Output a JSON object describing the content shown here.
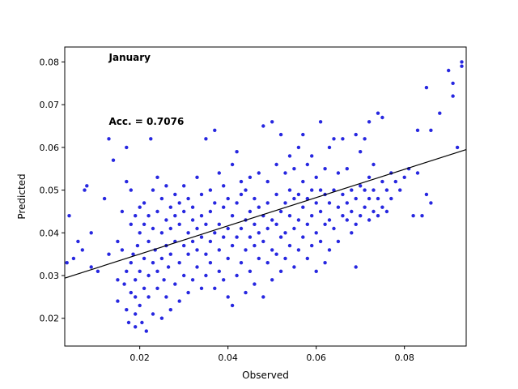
{
  "chart_data": {
    "type": "scatter",
    "title": "",
    "xlabel": "Observed",
    "ylabel": "Predicted",
    "xlim": [
      0.003,
      0.094
    ],
    "ylim": [
      0.0135,
      0.0835
    ],
    "xticks": [
      0.02,
      0.04,
      0.06,
      0.08
    ],
    "xtick_labels": [
      "0.02",
      "0.04",
      "0.06",
      "0.08"
    ],
    "yticks": [
      0.02,
      0.03,
      0.04,
      0.05,
      0.06,
      0.07,
      0.08
    ],
    "ytick_labels": [
      "0.02",
      "0.03",
      "0.04",
      "0.05",
      "0.06",
      "0.07",
      "0.08"
    ],
    "grid": false,
    "annotations": [
      {
        "text": "January",
        "x": 0.013,
        "y": 0.0803
      },
      {
        "text": "Acc. = 0.7076",
        "x": 0.013,
        "y": 0.0653
      }
    ],
    "regression_line": {
      "x": [
        0.003,
        0.094
      ],
      "y": [
        0.0294,
        0.0595
      ]
    },
    "colors": {
      "points": "#1010dd",
      "line": "#000000"
    },
    "series": [
      {
        "points": [
          [
            0.004,
            0.044
          ],
          [
            0.0035,
            0.033
          ],
          [
            0.005,
            0.034
          ],
          [
            0.006,
            0.038
          ],
          [
            0.007,
            0.036
          ],
          [
            0.0075,
            0.05
          ],
          [
            0.008,
            0.051
          ],
          [
            0.009,
            0.032
          ],
          [
            0.009,
            0.04
          ],
          [
            0.0105,
            0.031
          ],
          [
            0.012,
            0.048
          ],
          [
            0.013,
            0.035
          ],
          [
            0.013,
            0.062
          ],
          [
            0.014,
            0.057
          ],
          [
            0.015,
            0.024
          ],
          [
            0.015,
            0.029
          ],
          [
            0.015,
            0.038
          ],
          [
            0.016,
            0.045
          ],
          [
            0.016,
            0.036
          ],
          [
            0.0165,
            0.028
          ],
          [
            0.017,
            0.06
          ],
          [
            0.017,
            0.052
          ],
          [
            0.017,
            0.031
          ],
          [
            0.017,
            0.022
          ],
          [
            0.0175,
            0.019
          ],
          [
            0.018,
            0.042
          ],
          [
            0.018,
            0.033
          ],
          [
            0.018,
            0.026
          ],
          [
            0.018,
            0.05
          ],
          [
            0.0185,
            0.035
          ],
          [
            0.019,
            0.018
          ],
          [
            0.019,
            0.021
          ],
          [
            0.019,
            0.025
          ],
          [
            0.019,
            0.029
          ],
          [
            0.019,
            0.044
          ],
          [
            0.0195,
            0.037
          ],
          [
            0.02,
            0.023
          ],
          [
            0.02,
            0.031
          ],
          [
            0.02,
            0.04
          ],
          [
            0.02,
            0.046
          ],
          [
            0.0205,
            0.019
          ],
          [
            0.021,
            0.027
          ],
          [
            0.021,
            0.034
          ],
          [
            0.021,
            0.047
          ],
          [
            0.021,
            0.042
          ],
          [
            0.0215,
            0.017
          ],
          [
            0.022,
            0.025
          ],
          [
            0.022,
            0.03
          ],
          [
            0.022,
            0.038
          ],
          [
            0.022,
            0.044
          ],
          [
            0.0225,
            0.062
          ],
          [
            0.023,
            0.021
          ],
          [
            0.023,
            0.033
          ],
          [
            0.023,
            0.041
          ],
          [
            0.023,
            0.05
          ],
          [
            0.0235,
            0.036
          ],
          [
            0.024,
            0.027
          ],
          [
            0.024,
            0.045
          ],
          [
            0.024,
            0.053
          ],
          [
            0.024,
            0.031
          ],
          [
            0.025,
            0.02
          ],
          [
            0.025,
            0.034
          ],
          [
            0.025,
            0.04
          ],
          [
            0.025,
            0.048
          ],
          [
            0.0255,
            0.029
          ],
          [
            0.026,
            0.025
          ],
          [
            0.026,
            0.037
          ],
          [
            0.026,
            0.043
          ],
          [
            0.026,
            0.051
          ],
          [
            0.0265,
            0.032
          ],
          [
            0.027,
            0.022
          ],
          [
            0.027,
            0.035
          ],
          [
            0.027,
            0.046
          ],
          [
            0.027,
            0.041
          ],
          [
            0.028,
            0.028
          ],
          [
            0.028,
            0.038
          ],
          [
            0.028,
            0.044
          ],
          [
            0.028,
            0.049
          ],
          [
            0.029,
            0.024
          ],
          [
            0.029,
            0.033
          ],
          [
            0.029,
            0.042
          ],
          [
            0.029,
            0.047
          ],
          [
            0.03,
            0.03
          ],
          [
            0.03,
            0.037
          ],
          [
            0.03,
            0.045
          ],
          [
            0.03,
            0.051
          ],
          [
            0.031,
            0.026
          ],
          [
            0.031,
            0.035
          ],
          [
            0.031,
            0.04
          ],
          [
            0.031,
            0.048
          ],
          [
            0.032,
            0.029
          ],
          [
            0.032,
            0.038
          ],
          [
            0.032,
            0.043
          ],
          [
            0.032,
            0.046
          ],
          [
            0.033,
            0.032
          ],
          [
            0.033,
            0.036
          ],
          [
            0.033,
            0.041
          ],
          [
            0.033,
            0.053
          ],
          [
            0.034,
            0.027
          ],
          [
            0.034,
            0.039
          ],
          [
            0.034,
            0.044
          ],
          [
            0.034,
            0.049
          ],
          [
            0.035,
            0.03
          ],
          [
            0.035,
            0.035
          ],
          [
            0.035,
            0.042
          ],
          [
            0.035,
            0.062
          ],
          [
            0.036,
            0.033
          ],
          [
            0.036,
            0.038
          ],
          [
            0.036,
            0.045
          ],
          [
            0.036,
            0.05
          ],
          [
            0.037,
            0.027
          ],
          [
            0.037,
            0.04
          ],
          [
            0.037,
            0.047
          ],
          [
            0.037,
            0.064
          ],
          [
            0.038,
            0.031
          ],
          [
            0.038,
            0.036
          ],
          [
            0.038,
            0.042
          ],
          [
            0.038,
            0.054
          ],
          [
            0.039,
            0.029
          ],
          [
            0.039,
            0.039
          ],
          [
            0.039,
            0.046
          ],
          [
            0.039,
            0.051
          ],
          [
            0.04,
            0.025
          ],
          [
            0.04,
            0.034
          ],
          [
            0.04,
            0.041
          ],
          [
            0.04,
            0.048
          ],
          [
            0.041,
            0.023
          ],
          [
            0.041,
            0.037
          ],
          [
            0.041,
            0.044
          ],
          [
            0.041,
            0.056
          ],
          [
            0.042,
            0.03
          ],
          [
            0.042,
            0.039
          ],
          [
            0.042,
            0.047
          ],
          [
            0.042,
            0.059
          ],
          [
            0.043,
            0.033
          ],
          [
            0.043,
            0.041
          ],
          [
            0.043,
            0.049
          ],
          [
            0.043,
            0.052
          ],
          [
            0.044,
            0.026
          ],
          [
            0.044,
            0.036
          ],
          [
            0.044,
            0.043
          ],
          [
            0.044,
            0.05
          ],
          [
            0.045,
            0.031
          ],
          [
            0.045,
            0.039
          ],
          [
            0.045,
            0.045
          ],
          [
            0.045,
            0.053
          ],
          [
            0.046,
            0.028
          ],
          [
            0.046,
            0.037
          ],
          [
            0.046,
            0.042
          ],
          [
            0.046,
            0.048
          ],
          [
            0.047,
            0.034
          ],
          [
            0.047,
            0.04
          ],
          [
            0.047,
            0.046
          ],
          [
            0.047,
            0.054
          ],
          [
            0.048,
            0.025
          ],
          [
            0.048,
            0.038
          ],
          [
            0.048,
            0.044
          ],
          [
            0.048,
            0.065
          ],
          [
            0.049,
            0.033
          ],
          [
            0.049,
            0.041
          ],
          [
            0.049,
            0.047
          ],
          [
            0.049,
            0.052
          ],
          [
            0.05,
            0.029
          ],
          [
            0.05,
            0.036
          ],
          [
            0.05,
            0.043
          ],
          [
            0.05,
            0.066
          ],
          [
            0.051,
            0.035
          ],
          [
            0.051,
            0.042
          ],
          [
            0.051,
            0.049
          ],
          [
            0.051,
            0.056
          ],
          [
            0.052,
            0.031
          ],
          [
            0.052,
            0.039
          ],
          [
            0.052,
            0.045
          ],
          [
            0.052,
            0.063
          ],
          [
            0.053,
            0.034
          ],
          [
            0.053,
            0.04
          ],
          [
            0.053,
            0.047
          ],
          [
            0.053,
            0.054
          ],
          [
            0.054,
            0.037
          ],
          [
            0.054,
            0.044
          ],
          [
            0.054,
            0.05
          ],
          [
            0.054,
            0.058
          ],
          [
            0.055,
            0.032
          ],
          [
            0.055,
            0.041
          ],
          [
            0.055,
            0.048
          ],
          [
            0.055,
            0.055
          ],
          [
            0.056,
            0.036
          ],
          [
            0.056,
            0.043
          ],
          [
            0.056,
            0.049
          ],
          [
            0.056,
            0.06
          ],
          [
            0.057,
            0.039
          ],
          [
            0.057,
            0.046
          ],
          [
            0.057,
            0.052
          ],
          [
            0.057,
            0.063
          ],
          [
            0.058,
            0.034
          ],
          [
            0.058,
            0.042
          ],
          [
            0.058,
            0.048
          ],
          [
            0.058,
            0.056
          ],
          [
            0.059,
            0.037
          ],
          [
            0.059,
            0.044
          ],
          [
            0.059,
            0.05
          ],
          [
            0.059,
            0.058
          ],
          [
            0.06,
            0.031
          ],
          [
            0.06,
            0.04
          ],
          [
            0.06,
            0.047
          ],
          [
            0.06,
            0.053
          ],
          [
            0.061,
            0.038
          ],
          [
            0.061,
            0.045
          ],
          [
            0.061,
            0.05
          ],
          [
            0.061,
            0.066
          ],
          [
            0.062,
            0.033
          ],
          [
            0.062,
            0.042
          ],
          [
            0.062,
            0.049
          ],
          [
            0.062,
            0.055
          ],
          [
            0.063,
            0.036
          ],
          [
            0.063,
            0.043
          ],
          [
            0.063,
            0.047
          ],
          [
            0.063,
            0.06
          ],
          [
            0.064,
            0.041
          ],
          [
            0.064,
            0.05
          ],
          [
            0.064,
            0.062
          ],
          [
            0.065,
            0.038
          ],
          [
            0.065,
            0.046
          ],
          [
            0.065,
            0.054
          ],
          [
            0.066,
            0.044
          ],
          [
            0.066,
            0.049
          ],
          [
            0.066,
            0.062
          ],
          [
            0.067,
            0.043
          ],
          [
            0.067,
            0.047
          ],
          [
            0.067,
            0.055
          ],
          [
            0.068,
            0.04
          ],
          [
            0.068,
            0.045
          ],
          [
            0.068,
            0.05
          ],
          [
            0.069,
            0.032
          ],
          [
            0.069,
            0.042
          ],
          [
            0.069,
            0.048
          ],
          [
            0.069,
            0.063
          ],
          [
            0.07,
            0.044
          ],
          [
            0.07,
            0.051
          ],
          [
            0.07,
            0.059
          ],
          [
            0.071,
            0.046
          ],
          [
            0.071,
            0.05
          ],
          [
            0.071,
            0.062
          ],
          [
            0.072,
            0.043
          ],
          [
            0.072,
            0.048
          ],
          [
            0.072,
            0.053
          ],
          [
            0.072,
            0.066
          ],
          [
            0.073,
            0.045
          ],
          [
            0.073,
            0.05
          ],
          [
            0.073,
            0.056
          ],
          [
            0.074,
            0.044
          ],
          [
            0.074,
            0.048
          ],
          [
            0.074,
            0.068
          ],
          [
            0.075,
            0.046
          ],
          [
            0.075,
            0.052
          ],
          [
            0.075,
            0.067
          ],
          [
            0.076,
            0.045
          ],
          [
            0.076,
            0.05
          ],
          [
            0.077,
            0.048
          ],
          [
            0.077,
            0.054
          ],
          [
            0.078,
            0.052
          ],
          [
            0.079,
            0.05
          ],
          [
            0.08,
            0.053
          ],
          [
            0.081,
            0.055
          ],
          [
            0.082,
            0.044
          ],
          [
            0.083,
            0.054
          ],
          [
            0.083,
            0.064
          ],
          [
            0.084,
            0.044
          ],
          [
            0.085,
            0.049
          ],
          [
            0.085,
            0.074
          ],
          [
            0.086,
            0.047
          ],
          [
            0.086,
            0.064
          ],
          [
            0.088,
            0.068
          ],
          [
            0.09,
            0.078
          ],
          [
            0.091,
            0.072
          ],
          [
            0.091,
            0.075
          ],
          [
            0.092,
            0.06
          ],
          [
            0.093,
            0.079
          ],
          [
            0.093,
            0.08
          ]
        ]
      }
    ]
  }
}
